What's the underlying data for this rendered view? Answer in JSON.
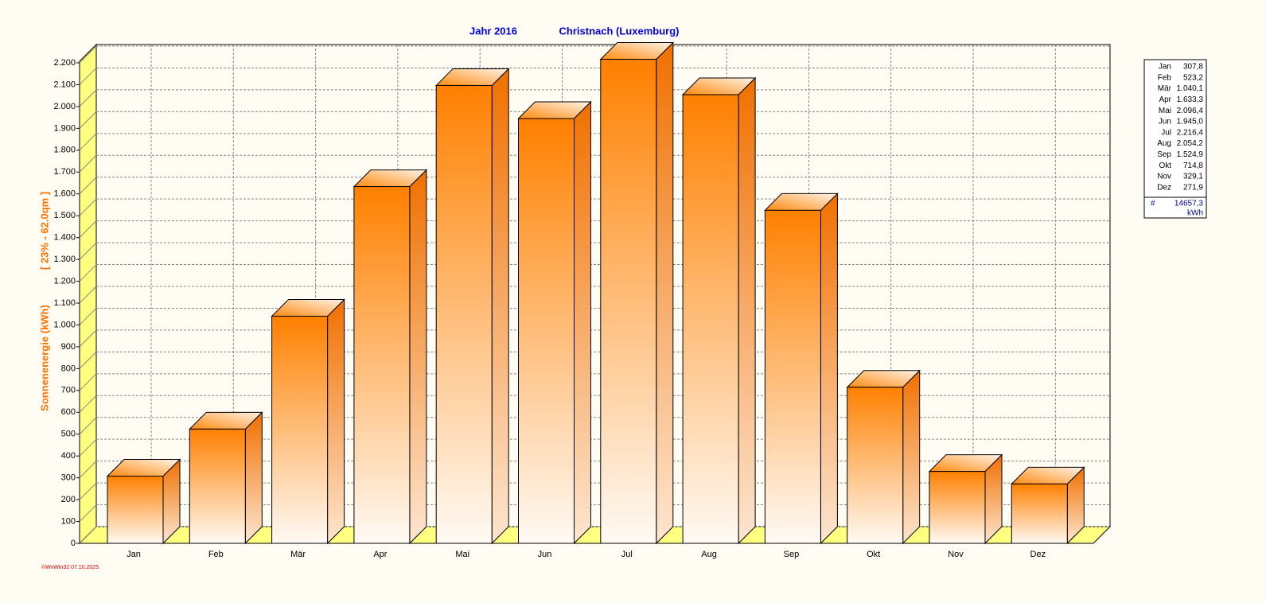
{
  "chart_data": {
    "type": "bar3d",
    "title": "Jahr  2016",
    "subtitle": "Christnach (Luxemburg)",
    "y_label": "Sonnenenergie  (kWh)",
    "y_label_extra": "[ 23% - 62.0qm ]",
    "footer": "©WvWin32  07.10.2025",
    "categories": [
      "Jan",
      "Feb",
      "Mär",
      "Apr",
      "Mai",
      "Jun",
      "Jul",
      "Aug",
      "Sep",
      "Okt",
      "Nov",
      "Dez"
    ],
    "values": [
      307.8,
      523.2,
      1040.1,
      1633.3,
      2096.4,
      1945.0,
      2216.4,
      2054.2,
      1524.9,
      714.8,
      329.1,
      271.9
    ],
    "value_labels": [
      "307,8",
      "523,2",
      "1.040,1",
      "1.633,3",
      "2.096,4",
      "1.945,0",
      "2.216,4",
      "2.054,2",
      "1.524,9",
      "714,8",
      "329,1",
      "271,9"
    ],
    "legend_total_marker": "#",
    "legend_total": "14657,3",
    "legend_unit": "kWh",
    "color": "#ff8000",
    "ylim": [
      0,
      2200
    ],
    "yticks": [
      0,
      100,
      200,
      300,
      400,
      500,
      600,
      700,
      800,
      900,
      {
        "value": 1000,
        "label": "1.000"
      },
      {
        "value": 1100,
        "label": "1.100"
      },
      {
        "value": 1200,
        "label": "1.200"
      },
      {
        "value": 1300,
        "label": "1.300"
      },
      {
        "value": 1400,
        "label": "1.400"
      },
      {
        "value": 1500,
        "label": "1.500"
      },
      {
        "value": 1600,
        "label": "1.600"
      },
      {
        "value": 1700,
        "label": "1.700"
      },
      {
        "value": 1800,
        "label": "1.800"
      },
      {
        "value": 1900,
        "label": "1.900"
      },
      {
        "value": 2000,
        "label": "2.000"
      },
      {
        "value": 2100,
        "label": "2.100"
      },
      {
        "value": 2200,
        "label": "2.200"
      }
    ],
    "grid": true
  }
}
